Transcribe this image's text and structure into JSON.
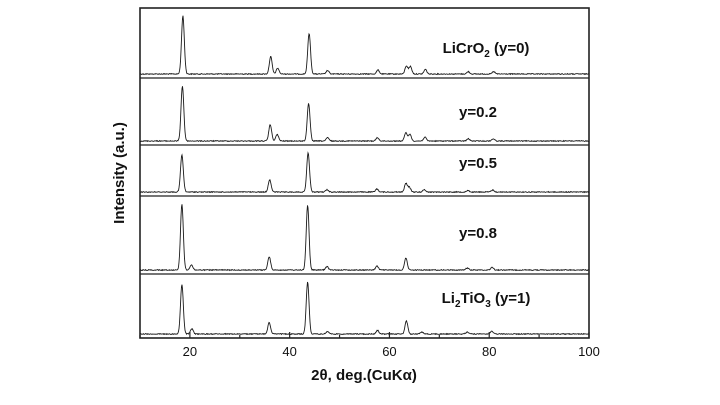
{
  "chart_data": {
    "type": "line",
    "xlabel": "2θ, deg.(CuKα)",
    "ylabel": "Intensity (a.u.)",
    "xlim": [
      10,
      100
    ],
    "xticks": [
      20,
      40,
      60,
      80,
      100
    ],
    "stacked": true,
    "peak_width_deg": 0.28,
    "series": [
      {
        "name": "LiCrO₂ (y=0)",
        "label_parts": [
          {
            "text": "LiCrO",
            "sub": false
          },
          {
            "text": "2",
            "sub": true
          },
          {
            "text": " (y=0)",
            "sub": false
          }
        ],
        "peaks": [
          {
            "x": 18.6,
            "h": 1.0
          },
          {
            "x": 36.2,
            "h": 0.3
          },
          {
            "x": 37.6,
            "h": 0.1
          },
          {
            "x": 43.9,
            "h": 0.7
          },
          {
            "x": 47.6,
            "h": 0.06
          },
          {
            "x": 57.7,
            "h": 0.07
          },
          {
            "x": 63.4,
            "h": 0.14
          },
          {
            "x": 64.2,
            "h": 0.13
          },
          {
            "x": 67.2,
            "h": 0.08
          },
          {
            "x": 75.8,
            "h": 0.04
          },
          {
            "x": 80.9,
            "h": 0.04
          }
        ]
      },
      {
        "name": "y=0.2",
        "label_parts": [
          {
            "text": "y=0.2",
            "sub": false
          }
        ],
        "peaks": [
          {
            "x": 18.5,
            "h": 1.0
          },
          {
            "x": 36.1,
            "h": 0.3
          },
          {
            "x": 37.5,
            "h": 0.12
          },
          {
            "x": 43.8,
            "h": 0.68
          },
          {
            "x": 47.6,
            "h": 0.06
          },
          {
            "x": 57.6,
            "h": 0.06
          },
          {
            "x": 63.3,
            "h": 0.15
          },
          {
            "x": 64.1,
            "h": 0.12
          },
          {
            "x": 67.1,
            "h": 0.07
          },
          {
            "x": 75.8,
            "h": 0.04
          },
          {
            "x": 80.8,
            "h": 0.04
          }
        ]
      },
      {
        "name": "y=0.5",
        "label_parts": [
          {
            "text": "y=0.5",
            "sub": false
          }
        ],
        "peaks": [
          {
            "x": 18.4,
            "h": 0.95
          },
          {
            "x": 36.0,
            "h": 0.32
          },
          {
            "x": 43.7,
            "h": 1.0
          },
          {
            "x": 47.5,
            "h": 0.06
          },
          {
            "x": 57.5,
            "h": 0.08
          },
          {
            "x": 63.3,
            "h": 0.22
          },
          {
            "x": 64.0,
            "h": 0.12
          },
          {
            "x": 67.0,
            "h": 0.06
          },
          {
            "x": 75.7,
            "h": 0.04
          },
          {
            "x": 80.7,
            "h": 0.05
          }
        ]
      },
      {
        "name": "y=0.8",
        "label_parts": [
          {
            "text": "y=0.8",
            "sub": false
          }
        ],
        "peaks": [
          {
            "x": 18.4,
            "h": 1.0
          },
          {
            "x": 20.3,
            "h": 0.08
          },
          {
            "x": 35.9,
            "h": 0.2
          },
          {
            "x": 43.6,
            "h": 0.98
          },
          {
            "x": 47.5,
            "h": 0.05
          },
          {
            "x": 57.5,
            "h": 0.06
          },
          {
            "x": 63.3,
            "h": 0.18
          },
          {
            "x": 75.6,
            "h": 0.03
          },
          {
            "x": 80.6,
            "h": 0.04
          }
        ]
      },
      {
        "name": "Li₂TiO₃ (y=1)",
        "label_parts": [
          {
            "text": "Li",
            "sub": false
          },
          {
            "text": "2",
            "sub": true
          },
          {
            "text": "TiO",
            "sub": false
          },
          {
            "text": "3",
            "sub": true
          },
          {
            "text": " (y=1)",
            "sub": false
          }
        ],
        "peaks": [
          {
            "x": 18.4,
            "h": 0.95
          },
          {
            "x": 20.4,
            "h": 0.1
          },
          {
            "x": 35.9,
            "h": 0.22
          },
          {
            "x": 43.6,
            "h": 1.0
          },
          {
            "x": 47.6,
            "h": 0.05
          },
          {
            "x": 57.6,
            "h": 0.07
          },
          {
            "x": 63.4,
            "h": 0.25
          },
          {
            "x": 66.5,
            "h": 0.04
          },
          {
            "x": 75.6,
            "h": 0.04
          },
          {
            "x": 80.5,
            "h": 0.05
          }
        ]
      }
    ]
  }
}
